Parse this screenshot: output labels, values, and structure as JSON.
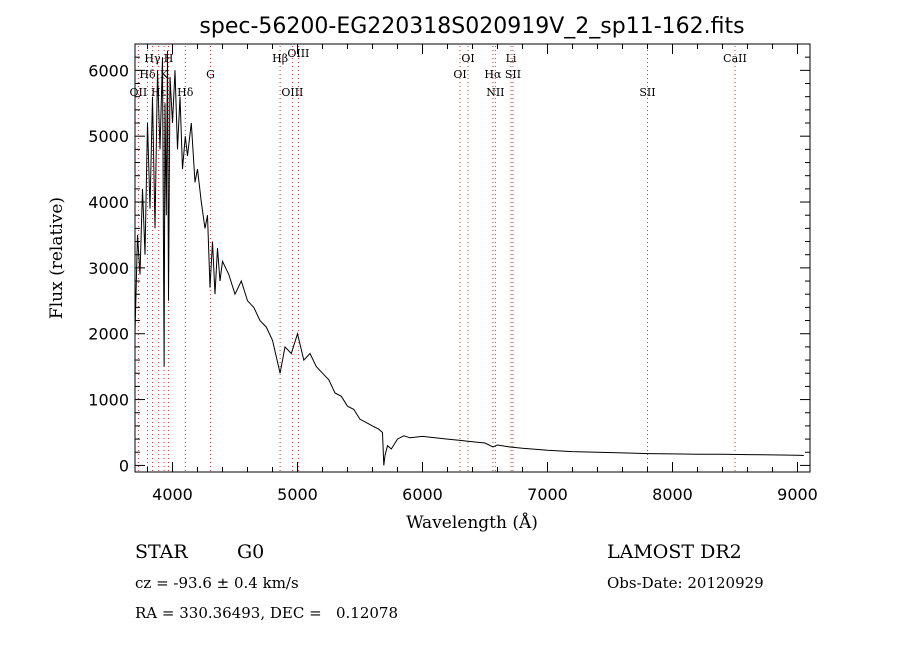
{
  "chart_data": {
    "type": "line",
    "title": "spec-56200-EG220318S020919V_2_sp11-162.fits",
    "xlabel": "Wavelength (Å)",
    "ylabel": "Flux (relative)",
    "xlim": [
      3700,
      9100
    ],
    "ylim": [
      -100,
      6400
    ],
    "x_ticks": [
      4000,
      5000,
      6000,
      7000,
      8000,
      9000
    ],
    "y_ticks": [
      0,
      1000,
      2000,
      3000,
      4000,
      5000,
      6000
    ],
    "grid": false,
    "series": [
      {
        "x": [
          3700,
          3720,
          3740,
          3760,
          3780,
          3800,
          3820,
          3840,
          3860,
          3880,
          3900,
          3920,
          3933,
          3940,
          3950,
          3960,
          3968,
          3980,
          4000,
          4020,
          4040,
          4060,
          4080,
          4102,
          4120,
          4150,
          4180,
          4200,
          4230,
          4260,
          4280,
          4300,
          4320,
          4340,
          4360,
          4380,
          4400,
          4450,
          4500,
          4550,
          4600,
          4650,
          4700,
          4750,
          4800,
          4861,
          4900,
          4950,
          5000,
          5050,
          5100,
          5150,
          5200,
          5250,
          5300,
          5350,
          5400,
          5450,
          5500,
          5550,
          5600,
          5650,
          5680,
          5690,
          5700,
          5720,
          5750,
          5800,
          5850,
          5900,
          6000,
          6100,
          6200,
          6300,
          6400,
          6500,
          6563,
          6600,
          6700,
          6800,
          7000,
          7200,
          7400,
          7600,
          7800,
          8000,
          8200,
          8400,
          8600,
          8800,
          9000,
          9050
        ],
        "y": [
          2000,
          3500,
          2900,
          4200,
          3200,
          5200,
          3900,
          5600,
          3600,
          6000,
          4800,
          6200,
          1500,
          5500,
          3800,
          6300,
          2500,
          5900,
          5200,
          6000,
          4800,
          5600,
          4500,
          5000,
          4700,
          5200,
          4300,
          4500,
          4000,
          3600,
          3800,
          2700,
          3400,
          2600,
          3300,
          2800,
          3100,
          2900,
          2600,
          2800,
          2500,
          2400,
          2200,
          2100,
          1900,
          1400,
          1800,
          1700,
          2000,
          1600,
          1700,
          1500,
          1400,
          1300,
          1100,
          1050,
          900,
          850,
          700,
          650,
          600,
          550,
          500,
          0,
          150,
          300,
          250,
          400,
          450,
          420,
          440,
          420,
          400,
          380,
          360,
          340,
          280,
          310,
          280,
          260,
          230,
          210,
          200,
          190,
          180,
          175,
          170,
          170,
          165,
          160,
          155,
          150
        ]
      }
    ],
    "line_markers": [
      {
        "label": "Hγ",
        "x": 3840,
        "row": 1
      },
      {
        "label": "H",
        "x": 3968,
        "row": 1
      },
      {
        "label": "Hδ",
        "x": 3800,
        "row": 2
      },
      {
        "label": "K",
        "x": 3933,
        "row": 2
      },
      {
        "label": "G",
        "x": 4304,
        "row": 2
      },
      {
        "label": "OII",
        "x": 3727,
        "row": 3
      },
      {
        "label": "Hε",
        "x": 3889,
        "row": 3
      },
      {
        "label": "Hδ",
        "x": 4102,
        "row": 3
      },
      {
        "label": "Hβ",
        "x": 4861,
        "row": 1
      },
      {
        "label": "OIII",
        "x": 4959,
        "row": 3
      },
      {
        "label": "OIII",
        "x": 5007,
        "row": 0
      },
      {
        "label": "OI",
        "x": 6364,
        "row": 1
      },
      {
        "label": "OI",
        "x": 6300,
        "row": 2
      },
      {
        "label": "Hα",
        "x": 6563,
        "row": 2
      },
      {
        "label": "NII",
        "x": 6583,
        "row": 3
      },
      {
        "label": "Li",
        "x": 6708,
        "row": 1
      },
      {
        "label": "SII",
        "x": 6724,
        "row": 2
      },
      {
        "label": "SII",
        "x": 7800,
        "row": 3
      },
      {
        "label": "CaII",
        "x": 8500,
        "row": 1
      }
    ]
  },
  "footer": {
    "class_text": "STAR",
    "subclass_text": "G0",
    "survey_text": "LAMOST DR2",
    "cz_text": "cz = -93.6 ± 0.4 km/s",
    "obs_date_text": "Obs-Date: 20120929",
    "coords_text": "RA = 330.36493, DEC =   0.12078"
  },
  "colors": {
    "spectrum": "#000000",
    "marker_lines": "#cc3333",
    "axes": "#000000"
  }
}
